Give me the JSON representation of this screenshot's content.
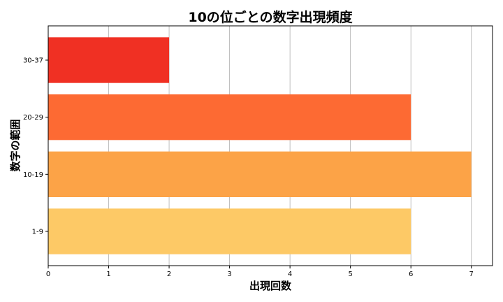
{
  "chart_data": {
    "type": "bar",
    "orientation": "horizontal",
    "title": "10の位ごとの数字出現頻度",
    "xlabel": "出現回数",
    "ylabel": "数字の範囲",
    "categories": [
      "1-9",
      "10-19",
      "20-29",
      "30-37"
    ],
    "values": [
      6,
      7,
      6,
      2
    ],
    "colors": [
      "#fdc966",
      "#fca347",
      "#fd6a33",
      "#f03023"
    ],
    "xlim": [
      0,
      7.35
    ],
    "xticks": [
      0,
      1,
      2,
      3,
      4,
      5,
      6,
      7
    ],
    "grid": "vertical"
  }
}
